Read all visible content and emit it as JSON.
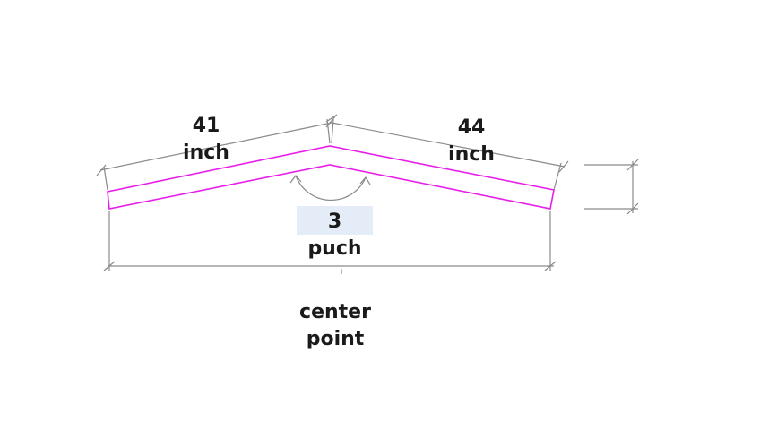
{
  "diagram": {
    "left_length": {
      "value": "41",
      "unit": "inch"
    },
    "right_length": {
      "value": "44",
      "unit": "inch"
    },
    "bend": {
      "value": "3",
      "unit": "puch"
    },
    "center_label": [
      "center",
      "point"
    ],
    "colors": {
      "part_outline": "#e81ee8",
      "dimension_line": "#8a8a8a",
      "label_highlight": "#e4ecf8",
      "text": "#1a1a1a"
    }
  }
}
